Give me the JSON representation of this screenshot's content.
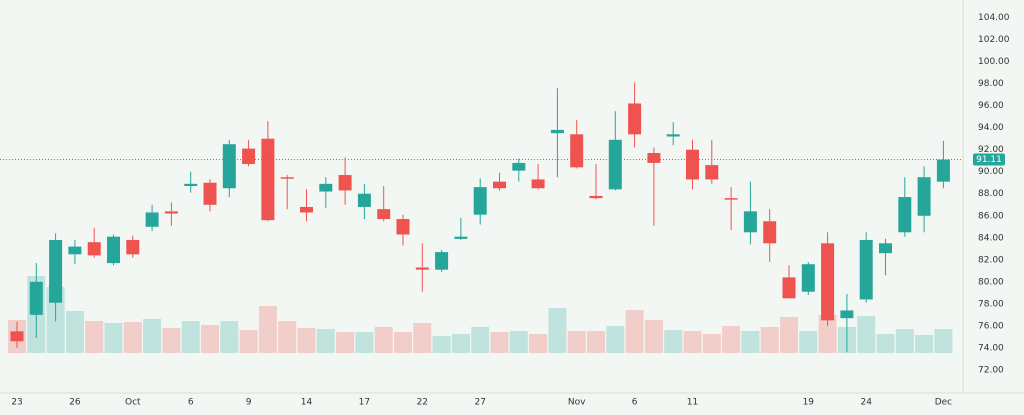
{
  "chart_data": {
    "type": "candlestick",
    "categories": [
      "23",
      null,
      null,
      "26",
      null,
      null,
      "Oct",
      null,
      null,
      "6",
      null,
      null,
      "9",
      null,
      null,
      "14",
      null,
      null,
      "17",
      null,
      null,
      "22",
      null,
      null,
      "27",
      null,
      null,
      null,
      null,
      "Nov",
      null,
      null,
      "6",
      null,
      null,
      "11",
      null,
      null,
      null,
      null,
      null,
      "19",
      null,
      null,
      "24",
      null,
      null,
      null,
      "Dec"
    ],
    "open": [
      75.5,
      77.0,
      78.1,
      82.5,
      83.6,
      81.7,
      83.8,
      85.0,
      86.4,
      88.7,
      89.0,
      88.5,
      92.1,
      93.0,
      89.5,
      86.8,
      88.2,
      89.7,
      86.8,
      86.6,
      85.7,
      81.3,
      81.1,
      83.9,
      86.1,
      89.1,
      90.1,
      89.3,
      93.5,
      93.4,
      87.8,
      88.4,
      96.2,
      91.7,
      93.2,
      92.0,
      90.6,
      87.6,
      84.5,
      85.5,
      80.4,
      79.1,
      83.5,
      76.7,
      78.4,
      82.6,
      84.5,
      86.0,
      89.1
    ],
    "high": [
      76.4,
      81.7,
      84.4,
      83.8,
      84.9,
      84.3,
      84.2,
      87.0,
      87.2,
      90.0,
      89.3,
      92.9,
      92.9,
      94.6,
      89.7,
      88.4,
      89.5,
      91.3,
      88.9,
      88.7,
      86.1,
      83.5,
      82.9,
      85.8,
      89.4,
      89.9,
      91.2,
      90.7,
      97.6,
      94.7,
      90.7,
      95.5,
      98.1,
      92.2,
      94.5,
      92.9,
      92.9,
      88.6,
      89.1,
      86.6,
      81.5,
      81.8,
      84.5,
      78.9,
      84.5,
      83.9,
      89.5,
      90.5,
      92.8
    ],
    "low": [
      74.0,
      74.9,
      76.4,
      81.6,
      82.2,
      81.5,
      82.2,
      84.6,
      85.1,
      88.1,
      86.4,
      87.7,
      90.5,
      85.5,
      86.6,
      85.5,
      86.7,
      87.0,
      85.7,
      85.5,
      83.3,
      79.1,
      80.9,
      83.8,
      85.2,
      88.3,
      89.1,
      88.4,
      89.5,
      90.3,
      87.5,
      88.3,
      92.2,
      85.1,
      92.4,
      88.4,
      88.9,
      84.7,
      83.4,
      81.8,
      78.5,
      78.8,
      76.0,
      73.6,
      78.1,
      80.6,
      84.1,
      84.5,
      88.5
    ],
    "close": [
      74.6,
      80.0,
      83.8,
      83.2,
      82.4,
      84.1,
      82.5,
      86.3,
      86.2,
      88.9,
      87.0,
      92.5,
      90.7,
      85.6,
      89.4,
      86.3,
      88.9,
      88.3,
      88.0,
      85.7,
      84.3,
      81.1,
      82.7,
      84.1,
      88.6,
      88.5,
      90.8,
      88.5,
      93.8,
      90.4,
      87.6,
      92.9,
      93.4,
      90.8,
      93.4,
      89.3,
      89.3,
      87.5,
      86.4,
      83.5,
      78.5,
      81.6,
      76.5,
      77.4,
      83.8,
      83.5,
      87.7,
      89.5,
      91.1
    ],
    "volume": [
      33,
      77,
      66,
      42,
      32,
      30,
      31,
      34,
      25,
      32,
      28,
      32,
      23,
      47,
      32,
      25,
      24,
      21,
      21,
      26,
      21,
      30,
      17,
      19,
      26,
      21,
      22,
      19,
      45,
      22,
      22,
      27,
      43,
      33,
      23,
      22,
      19,
      27,
      22,
      26,
      36,
      22,
      38,
      26,
      37,
      19,
      24,
      18,
      24
    ],
    "vlim": [
      0,
      150
    ],
    "up_color": "#26a69a",
    "down_color": "#ef5350",
    "last_price": 91.11,
    "ylim": [
      69.9,
      105.6
    ],
    "yticks": [
      {
        "value": 72,
        "label": "72.00"
      },
      {
        "value": 74,
        "label": "74.00"
      },
      {
        "value": 76,
        "label": "76.00"
      },
      {
        "value": 78,
        "label": "78.00"
      },
      {
        "value": 80,
        "label": "80.00"
      },
      {
        "value": 82,
        "label": "82.00"
      },
      {
        "value": 84,
        "label": "84.00"
      },
      {
        "value": 86,
        "label": "86.00"
      },
      {
        "value": 88,
        "label": "88.00"
      },
      {
        "value": 90,
        "label": "90.00"
      },
      {
        "value": 92,
        "label": "92.00"
      },
      {
        "value": 94,
        "label": "94.00"
      },
      {
        "value": 96,
        "label": "96.00"
      },
      {
        "value": 98,
        "label": "98.00"
      },
      {
        "value": 100,
        "label": "100.00"
      },
      {
        "value": 102,
        "label": "102.00"
      },
      {
        "value": 104,
        "label": "104.00"
      }
    ]
  }
}
